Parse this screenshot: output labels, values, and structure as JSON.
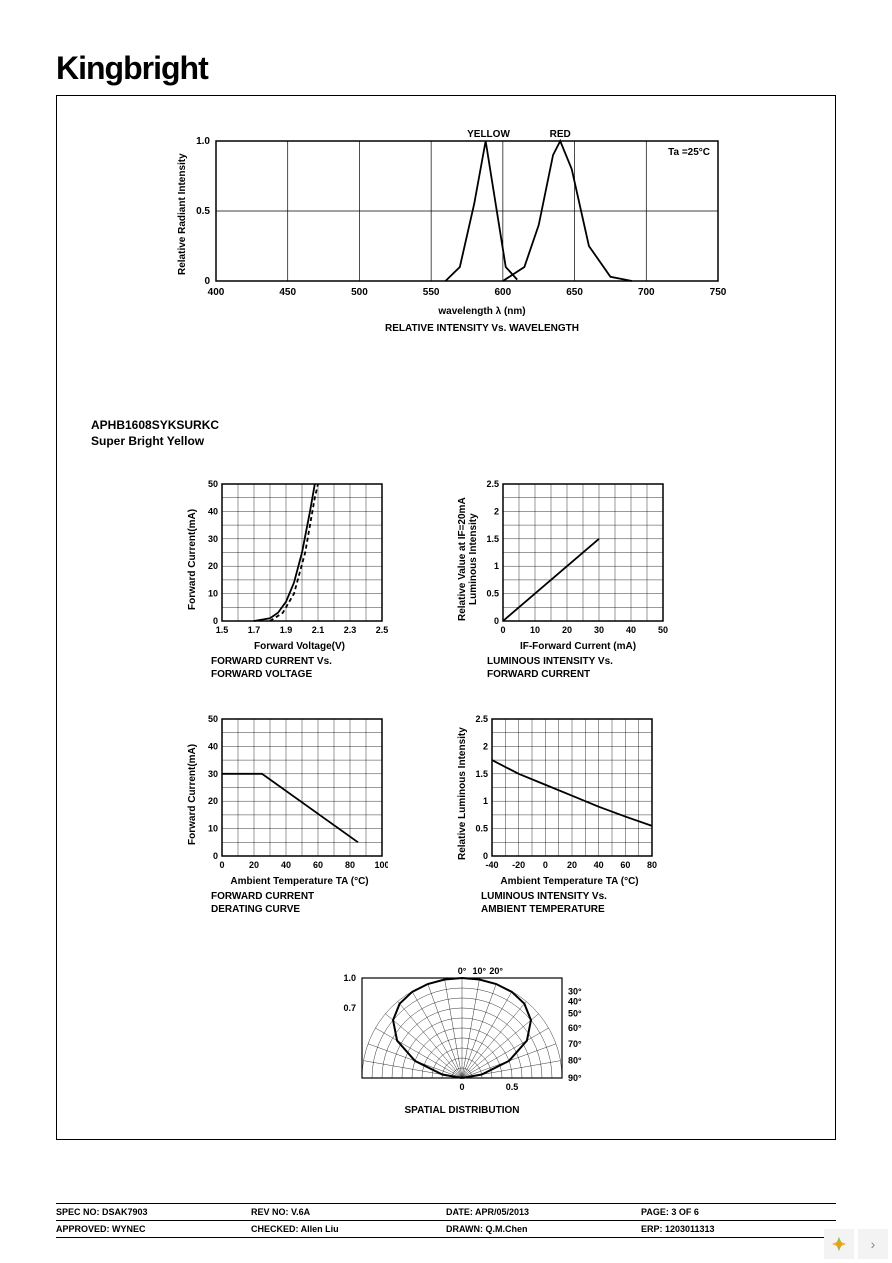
{
  "brand": "Kingbright",
  "part": {
    "line1": "APHB1608SYKSURKC",
    "line2": "Super Bright Yellow"
  },
  "chart_top": {
    "title": "RELATIVE INTENSITY Vs. WAVELENGTH",
    "xlabel": "wavelength  λ  (nm)",
    "ylabel": "Relative  Radiant  Intensity",
    "annotation": "Ta =25°C",
    "label_yellow": "YELLOW",
    "label_red": "RED",
    "xlim": [
      400,
      750
    ],
    "xtick_step": 50,
    "ylim": [
      0,
      1.0
    ],
    "yticks": [
      0,
      0.5,
      1.0
    ],
    "series": {
      "yellow": [
        [
          560,
          0
        ],
        [
          570,
          0.1
        ],
        [
          580,
          0.55
        ],
        [
          588,
          1.0
        ],
        [
          595,
          0.55
        ],
        [
          602,
          0.1
        ],
        [
          610,
          0.01
        ]
      ],
      "red": [
        [
          600,
          0
        ],
        [
          615,
          0.1
        ],
        [
          625,
          0.4
        ],
        [
          635,
          0.9
        ],
        [
          640,
          1.0
        ],
        [
          648,
          0.8
        ],
        [
          660,
          0.25
        ],
        [
          675,
          0.03
        ],
        [
          690,
          0
        ]
      ]
    },
    "line_color": "#000000",
    "background_color": "#ffffff",
    "grid_color": "#000000"
  },
  "chart_a": {
    "title1": "FORWARD CURRENT Vs.",
    "title2": "FORWARD VOLTAGE",
    "xlabel": "Forward Voltage(V)",
    "ylabel": "Forward Current(mA)",
    "xlim": [
      1.5,
      2.5
    ],
    "xticks": [
      1.5,
      1.7,
      1.9,
      2.1,
      2.3,
      2.5
    ],
    "ylim": [
      0,
      50
    ],
    "ytick_step": 10,
    "grid_minor_x": 0.1,
    "grid_minor_y": 5,
    "series1": [
      [
        1.7,
        0
      ],
      [
        1.8,
        1
      ],
      [
        1.85,
        3
      ],
      [
        1.9,
        7
      ],
      [
        1.95,
        14
      ],
      [
        2.0,
        25
      ],
      [
        2.05,
        40
      ],
      [
        2.08,
        50
      ]
    ],
    "series2_dashed": [
      [
        1.8,
        0
      ],
      [
        1.88,
        3
      ],
      [
        1.95,
        10
      ],
      [
        2.02,
        25
      ],
      [
        2.08,
        45
      ],
      [
        2.1,
        50
      ]
    ],
    "line_color": "#000000"
  },
  "chart_b": {
    "title1": "LUMINOUS INTENSITY Vs.",
    "title2": "FORWARD CURRENT",
    "xlabel": "IF-Forward Current (mA)",
    "ylabel_l1": "Luminous Intensity",
    "ylabel_l2": "Relative Value at IF=20mA",
    "xlim": [
      0,
      50
    ],
    "xtick_step": 10,
    "ylim": [
      0,
      2.5
    ],
    "ytick_step": 0.5,
    "grid_minor_x": 5,
    "grid_minor_y": 0.25,
    "series": [
      [
        0,
        0
      ],
      [
        10,
        0.5
      ],
      [
        20,
        1.0
      ],
      [
        30,
        1.5
      ]
    ],
    "line_color": "#000000"
  },
  "chart_c": {
    "title1": "FORWARD CURRENT",
    "title2": "DERATING CURVE",
    "xlabel": "Ambient Temperature TA (°C)",
    "ylabel": "Forward Current(mA)",
    "xlim": [
      0,
      100
    ],
    "xtick_step": 20,
    "ylim": [
      0,
      50
    ],
    "ytick_step": 10,
    "grid_minor_x": 10,
    "grid_minor_y": 5,
    "series": [
      [
        0,
        30
      ],
      [
        25,
        30
      ],
      [
        85,
        5
      ]
    ],
    "line_color": "#000000"
  },
  "chart_d": {
    "title1": "LUMINOUS INTENSITY Vs.",
    "title2": "AMBIENT TEMPERATURE",
    "xlabel": "Ambient Temperature TA (°C)",
    "ylabel": "Relative Luminous Intensity",
    "xlim": [
      -40,
      80
    ],
    "xtick_step": 20,
    "ylim": [
      0,
      2.5
    ],
    "ytick_step": 0.5,
    "grid_minor_x": 10,
    "grid_minor_y": 0.25,
    "series": [
      [
        -40,
        1.75
      ],
      [
        -20,
        1.5
      ],
      [
        0,
        1.3
      ],
      [
        20,
        1.1
      ],
      [
        40,
        0.9
      ],
      [
        60,
        0.72
      ],
      [
        80,
        0.55
      ]
    ],
    "line_color": "#000000"
  },
  "chart_e": {
    "title": "SPATIAL DISTRIBUTION",
    "angle_labels": [
      "0°",
      "10°",
      "20°",
      "30°",
      "40°",
      "50°",
      "60°",
      "70°",
      "80°",
      "90°"
    ],
    "radial_labels_left": [
      "1.0",
      "0.7"
    ],
    "radial_labels_bottom": [
      "0",
      "0.5"
    ],
    "radii": [
      0.1,
      0.2,
      0.3,
      0.4,
      0.5,
      0.6,
      0.7,
      0.8,
      0.9,
      1.0
    ],
    "beam_curve": [
      [
        -90,
        0
      ],
      [
        -80,
        0.2
      ],
      [
        -70,
        0.5
      ],
      [
        -60,
        0.75
      ],
      [
        -50,
        0.9
      ],
      [
        -40,
        0.97
      ],
      [
        -30,
        0.995
      ],
      [
        -20,
        1.0
      ],
      [
        -10,
        1.0
      ],
      [
        0,
        1.0
      ],
      [
        10,
        1.0
      ],
      [
        20,
        1.0
      ],
      [
        30,
        0.995
      ],
      [
        40,
        0.97
      ],
      [
        50,
        0.9
      ],
      [
        60,
        0.75
      ],
      [
        70,
        0.5
      ],
      [
        80,
        0.2
      ],
      [
        90,
        0
      ]
    ],
    "line_color": "#000000"
  },
  "footer": {
    "spec_no": "SPEC NO: DSAK7903",
    "rev_no": "REV NO: V.6A",
    "date": "DATE: APR/05/2013",
    "page": "PAGE: 3 OF 6",
    "approved": "APPROVED: WYNEC",
    "checked": "CHECKED: Allen Liu",
    "drawn": "DRAWN: Q.M.Chen",
    "erp": "ERP: 1203011313"
  }
}
